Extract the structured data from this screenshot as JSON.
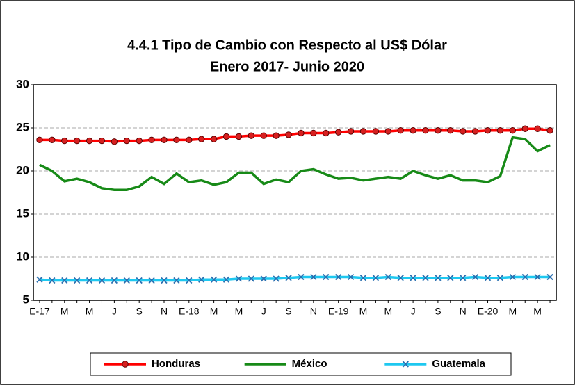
{
  "chart_data": {
    "type": "line",
    "title": "4.4.1 Tipo de Cambio con Respecto al US$ Dólar",
    "subtitle": "Enero 2017- Junio  2020",
    "categories": [
      "E-17",
      null,
      "M",
      null,
      "M",
      null,
      "J",
      null,
      "S",
      null,
      "N",
      null,
      "E-18",
      null,
      "M",
      null,
      "M",
      null,
      "J",
      null,
      "S",
      null,
      "N",
      null,
      "E-19",
      null,
      "M",
      null,
      "M",
      null,
      "J",
      null,
      "S",
      null,
      "N",
      null,
      "E-20",
      null,
      "M",
      null,
      "M",
      null
    ],
    "series": [
      {
        "name": "Honduras",
        "color": "#ff0000",
        "marker": "circle",
        "values": [
          23.6,
          23.6,
          23.5,
          23.5,
          23.5,
          23.5,
          23.4,
          23.5,
          23.5,
          23.6,
          23.6,
          23.6,
          23.6,
          23.7,
          23.7,
          24.0,
          24.0,
          24.1,
          24.1,
          24.1,
          24.2,
          24.4,
          24.4,
          24.4,
          24.5,
          24.6,
          24.6,
          24.6,
          24.6,
          24.7,
          24.7,
          24.7,
          24.7,
          24.7,
          24.6,
          24.6,
          24.7,
          24.7,
          24.7,
          24.9,
          24.9,
          24.7
        ]
      },
      {
        "name": "México",
        "color": "#178a17",
        "marker": "none",
        "values": [
          20.7,
          20.0,
          18.8,
          19.1,
          18.7,
          18.0,
          17.8,
          17.8,
          18.2,
          19.3,
          18.5,
          19.7,
          18.7,
          18.9,
          18.4,
          18.7,
          19.8,
          19.8,
          18.5,
          19.0,
          18.7,
          20.0,
          20.2,
          19.6,
          19.1,
          19.2,
          18.9,
          19.1,
          19.3,
          19.1,
          20.0,
          19.5,
          19.1,
          19.5,
          18.9,
          18.9,
          18.7,
          19.4,
          23.9,
          23.7,
          22.3,
          23.0
        ]
      },
      {
        "name": "Guatemala",
        "color": "#1ec8f0",
        "marker": "x",
        "values": [
          7.4,
          7.3,
          7.3,
          7.3,
          7.3,
          7.3,
          7.3,
          7.3,
          7.3,
          7.3,
          7.3,
          7.3,
          7.3,
          7.4,
          7.4,
          7.4,
          7.5,
          7.5,
          7.5,
          7.5,
          7.6,
          7.7,
          7.7,
          7.7,
          7.7,
          7.7,
          7.6,
          7.6,
          7.7,
          7.6,
          7.6,
          7.6,
          7.6,
          7.6,
          7.6,
          7.7,
          7.6,
          7.6,
          7.7,
          7.7,
          7.7,
          7.7
        ]
      }
    ],
    "ylim": [
      5,
      30
    ],
    "yticks": [
      5,
      10,
      15,
      20,
      25,
      30
    ],
    "grid": true,
    "legend_position": "bottom"
  }
}
